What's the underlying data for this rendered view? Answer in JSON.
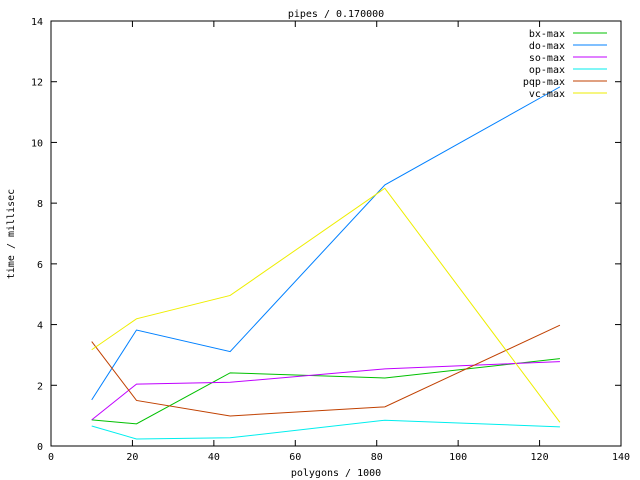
{
  "chart_data": {
    "type": "line",
    "title": "pipes / 0.170000",
    "xlabel": "polygons / 1000",
    "ylabel": "time / millisec",
    "xlim": [
      0,
      140
    ],
    "ylim": [
      0,
      14
    ],
    "xticks": [
      0,
      20,
      40,
      60,
      80,
      100,
      120,
      140
    ],
    "yticks": [
      0,
      2,
      4,
      6,
      8,
      10,
      12,
      14
    ],
    "grid": false,
    "legend_position": "top-right",
    "x": [
      10,
      21,
      44,
      82,
      125
    ],
    "series": [
      {
        "name": "bx-max",
        "color": "#00c000",
        "values": [
          0.86,
          0.73,
          2.41,
          2.24,
          2.88
        ]
      },
      {
        "name": "do-max",
        "color": "#0080ff",
        "values": [
          1.52,
          3.82,
          3.11,
          8.6,
          11.83
        ]
      },
      {
        "name": "so-max",
        "color": "#c000ff",
        "values": [
          0.86,
          2.04,
          2.1,
          2.54,
          2.78
        ]
      },
      {
        "name": "op-max",
        "color": "#00eeee",
        "values": [
          0.66,
          0.23,
          0.27,
          0.85,
          0.63
        ]
      },
      {
        "name": "pqp-max",
        "color": "#c04000",
        "values": [
          3.44,
          1.5,
          0.99,
          1.29,
          3.98
        ]
      },
      {
        "name": "vc-max",
        "color": "#eeee00",
        "values": [
          3.17,
          4.19,
          4.96,
          8.49,
          0.78
        ]
      }
    ]
  }
}
